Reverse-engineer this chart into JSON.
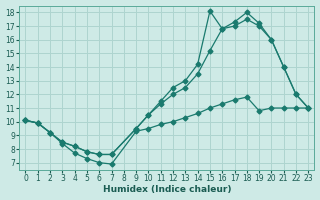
{
  "xlabel": "Humidex (Indice chaleur)",
  "bg_color": "#ceeae6",
  "grid_color": "#aed4cf",
  "line_color": "#1a7a6e",
  "xlim": [
    -0.5,
    23.5
  ],
  "ylim": [
    6.5,
    18.5
  ],
  "xticks": [
    0,
    1,
    2,
    3,
    4,
    5,
    6,
    7,
    8,
    9,
    10,
    11,
    12,
    13,
    14,
    15,
    16,
    17,
    18,
    19,
    20,
    21,
    22,
    23
  ],
  "yticks": [
    7,
    8,
    9,
    10,
    11,
    12,
    13,
    14,
    15,
    16,
    17,
    18
  ],
  "line_bottom_x": [
    0,
    1,
    2,
    3,
    4,
    5,
    6,
    7,
    9,
    10,
    11,
    12,
    13,
    14,
    15,
    16,
    17,
    18,
    19,
    20,
    21,
    22,
    23
  ],
  "line_bottom_y": [
    10.1,
    9.9,
    9.2,
    8.4,
    7.7,
    7.3,
    7.0,
    6.9,
    9.3,
    9.5,
    9.8,
    10.0,
    10.3,
    10.6,
    11.0,
    11.3,
    11.6,
    11.8,
    10.8,
    11.0,
    11.0,
    11.0,
    11.0
  ],
  "line_mid_x": [
    0,
    1,
    2,
    3,
    4,
    5,
    6,
    7,
    9,
    10,
    11,
    12,
    13,
    14,
    15,
    16,
    17,
    18,
    19,
    20,
    21,
    22,
    23
  ],
  "line_mid_y": [
    10.1,
    9.9,
    9.2,
    8.5,
    8.2,
    7.8,
    7.6,
    7.6,
    9.5,
    10.5,
    11.3,
    12.0,
    12.5,
    13.5,
    15.2,
    16.8,
    17.0,
    17.5,
    17.0,
    16.0,
    14.0,
    12.0,
    11.0
  ],
  "line_top_x": [
    0,
    1,
    2,
    3,
    4,
    5,
    6,
    7,
    9,
    10,
    11,
    12,
    13,
    14,
    15,
    16,
    17,
    18,
    19,
    20,
    21,
    22,
    23
  ],
  "line_top_y": [
    10.1,
    9.9,
    9.2,
    8.5,
    8.2,
    7.8,
    7.6,
    7.6,
    9.5,
    10.5,
    11.5,
    12.5,
    13.0,
    14.2,
    18.1,
    16.8,
    17.3,
    18.0,
    17.2,
    16.0,
    14.0,
    12.0,
    11.0
  ]
}
